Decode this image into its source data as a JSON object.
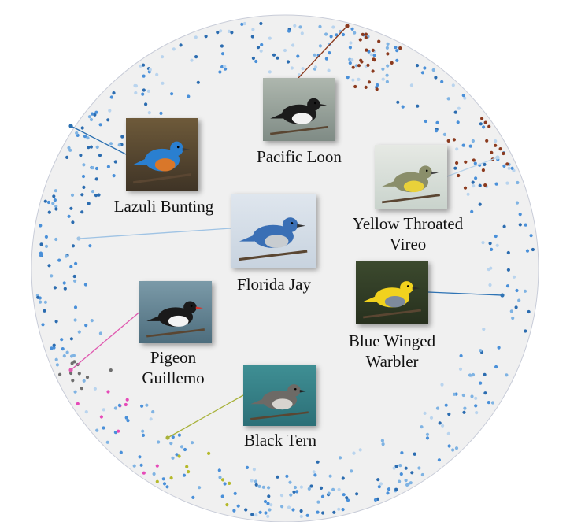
{
  "birds": [
    {
      "id": "pacific-loon",
      "caption": [
        "Pacific Loon"
      ],
      "line_color": "#8b3a1e",
      "photo": {
        "bg": "#aeb7ae",
        "bg2": "#7f8b85",
        "body": "#1b1b1b",
        "accent": "#f2f2f2",
        "beak": "#222222"
      }
    },
    {
      "id": "lazuli-bunting",
      "caption": [
        "Lazuli Bunting"
      ],
      "line_color": "#2a6fb0",
      "photo": {
        "bg": "#6e5a3a",
        "bg2": "#3f3426",
        "body": "#2a7fd0",
        "accent": "#d9772a",
        "beak": "#3a3a3a"
      }
    },
    {
      "id": "yellow-throated-vireo",
      "caption": [
        "Yellow Throated",
        "Vireo"
      ],
      "line_color": "#b8d3ea",
      "photo": {
        "bg": "#e6e9e4",
        "bg2": "#c9d3cc",
        "body": "#8a8e6a",
        "accent": "#e9d13a",
        "beak": "#444444"
      }
    },
    {
      "id": "florida-jay",
      "caption": [
        "Florida Jay"
      ],
      "line_color": "#9fc3e4",
      "photo": {
        "bg": "#dfe6ee",
        "bg2": "#c8d3df",
        "body": "#3a6fb5",
        "accent": "#c8ccd0",
        "beak": "#333333"
      }
    },
    {
      "id": "blue-winged-warbler",
      "caption": [
        "Blue Winged",
        "Warbler"
      ],
      "line_color": "#2f74b5",
      "photo": {
        "bg": "#3c4a2e",
        "bg2": "#27301e",
        "body": "#f1d21e",
        "accent": "#7d8a9c",
        "beak": "#2a2a2a"
      }
    },
    {
      "id": "pigeon-guillemo",
      "caption": [
        "Pigeon",
        "Guillemo"
      ],
      "line_color": "#e05ab0",
      "photo": {
        "bg": "#7b9aa8",
        "bg2": "#4d6d7d",
        "body": "#1a1a1a",
        "accent": "#f4f4f4",
        "beak": "#d8342a"
      }
    },
    {
      "id": "black-tern",
      "caption": [
        "Black Tern"
      ],
      "line_color": "#a8b23a",
      "photo": {
        "bg": "#3f8f94",
        "bg2": "#2c6f77",
        "body": "#6d6a66",
        "accent": "#d7d4cf",
        "beak": "#222222"
      }
    }
  ],
  "cluster_colors": [
    "#2b6cb0",
    "#4a90d9",
    "#7fb3e3",
    "#b9d4ee",
    "#8b3a1e",
    "#6e6e6e",
    "#e64ab8",
    "#b5b92a"
  ]
}
